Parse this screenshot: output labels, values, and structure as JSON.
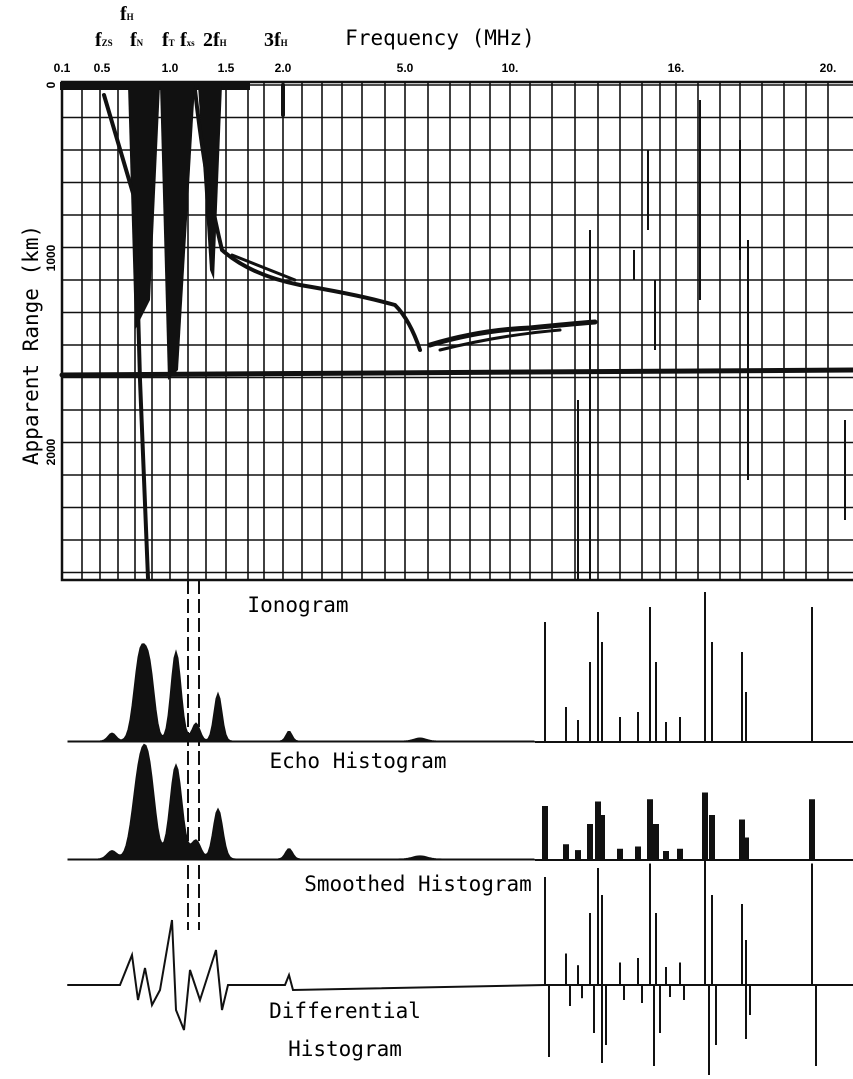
{
  "figure": {
    "x_axis": {
      "title": "Frequency (MHz)",
      "ticks": [
        "0.1",
        "0.5",
        "1.0",
        "1.5",
        "2.0",
        "5.0",
        "10.",
        "16.",
        "20."
      ]
    },
    "y_axis": {
      "title": "Apparent Range (km)",
      "ticks": [
        "0",
        "1000",
        "2000"
      ]
    },
    "markers": [
      {
        "symbol": "f",
        "subscript": "ZS"
      },
      {
        "symbol": "f",
        "subscript": "H"
      },
      {
        "symbol": "f",
        "subscript": "N"
      },
      {
        "symbol": "f",
        "subscript": "T"
      },
      {
        "symbol": "f",
        "subscript": "xs"
      },
      {
        "prefix": "2",
        "symbol": "f",
        "subscript": "H"
      },
      {
        "prefix": "3",
        "symbol": "f",
        "subscript": "H"
      }
    ],
    "panels": [
      "Ionogram",
      "Echo Histogram",
      "Smoothed Histogram"
    ],
    "last_panel": [
      "Differential",
      "Histogram"
    ]
  }
}
